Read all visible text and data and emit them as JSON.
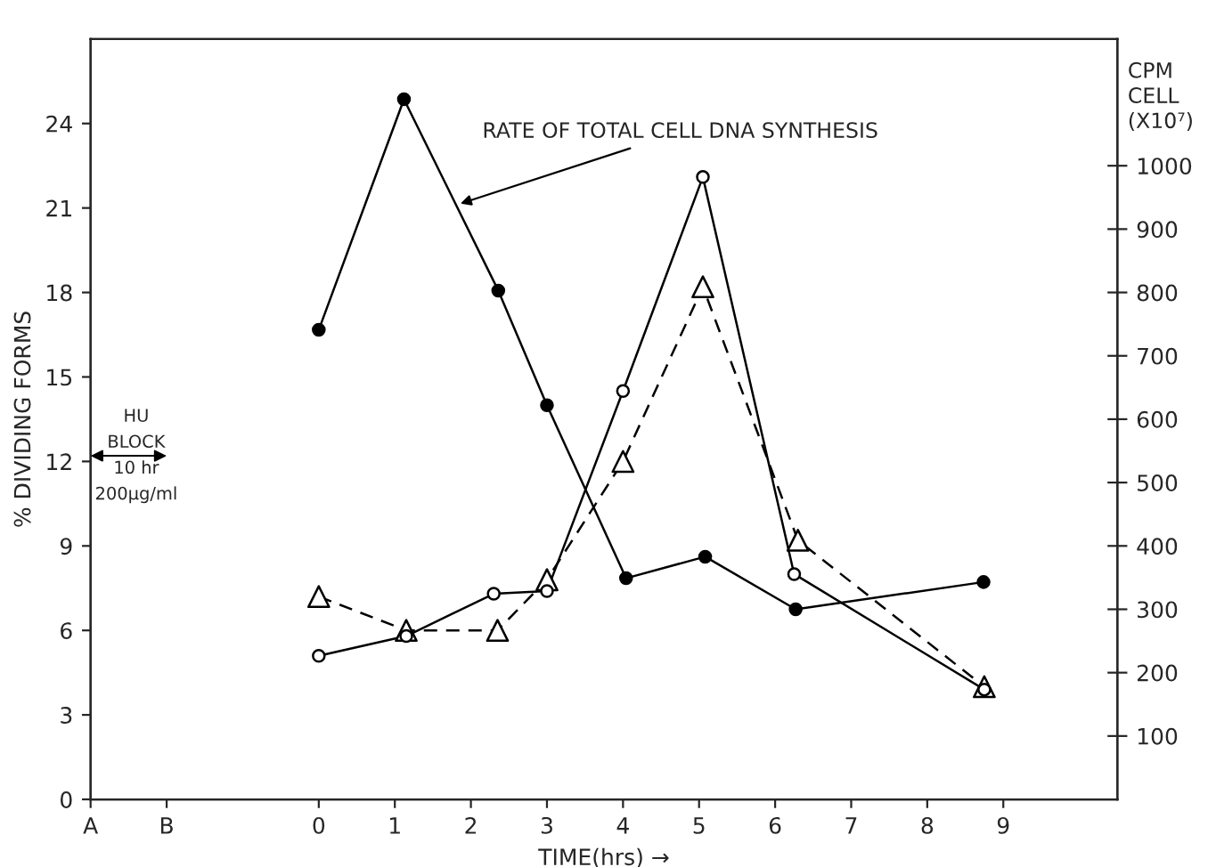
{
  "chart_data": {
    "type": "line",
    "xlabel": "TIME(hrs) →",
    "ylabel": "% DIVIDING FORMS",
    "y2label": "CPM\nCELL\n(X10⁷)",
    "xlim": [
      -3,
      10.5
    ],
    "xticks": [
      {
        "value": -3,
        "label": "A"
      },
      {
        "value": -2,
        "label": "B"
      },
      0,
      1,
      2,
      3,
      4,
      5,
      6,
      7,
      8,
      9
    ],
    "ylim": [
      0,
      27
    ],
    "yticks": [
      0,
      3,
      6,
      9,
      12,
      15,
      18,
      21,
      24
    ],
    "y2lim": [
      0,
      1200
    ],
    "y2ticks": [
      100,
      200,
      300,
      400,
      500,
      600,
      700,
      800,
      900,
      1000
    ],
    "series": [
      {
        "color": "#000000",
        "axis": "y2",
        "marker": "circle",
        "line_style": "solid",
        "x": [
          0,
          1.12,
          2.36,
          3,
          4.04,
          5.08,
          6.27,
          8.74
        ],
        "values": [
          741,
          1105,
          803,
          622,
          349,
          383,
          300,
          343
        ]
      },
      {
        "color": "#000000",
        "colors": [
          "#ffffff",
          "#ffffff",
          "#ffffff",
          "#ffffff",
          "#ffffff",
          "#ffffff",
          "#ffffff",
          "#ffffff"
        ],
        "axis": "y",
        "marker": "circle",
        "line_style": "solid",
        "x": [
          0,
          1.15,
          2.3,
          3,
          4,
          5.05,
          6.25,
          8.75
        ],
        "values": [
          5.1,
          5.8,
          7.3,
          7.4,
          14.5,
          22.1,
          8.0,
          3.9
        ]
      },
      {
        "color": "#000000",
        "colors": [
          "#ffffff",
          "#ffffff",
          "#ffffff",
          "#ffffff",
          "#ffffff",
          "#ffffff",
          "#ffffff",
          "#ffffff"
        ],
        "axis": "y",
        "marker": "triangle",
        "line_style": "dashed",
        "x": [
          0,
          1.15,
          2.35,
          3,
          4,
          5.05,
          6.3,
          8.75
        ],
        "values": [
          7.2,
          6.0,
          6.0,
          7.8,
          12.0,
          18.2,
          9.2,
          4.0
        ]
      }
    ],
    "annotations": [
      {
        "text": "RATE OF TOTAL CELL DNA SYNTHESIS",
        "x": 1.8,
        "y": 21.1
      },
      "HU\nBLOCK\n10 hr\n200μg/ml"
    ],
    "grid": false,
    "legend": false
  }
}
